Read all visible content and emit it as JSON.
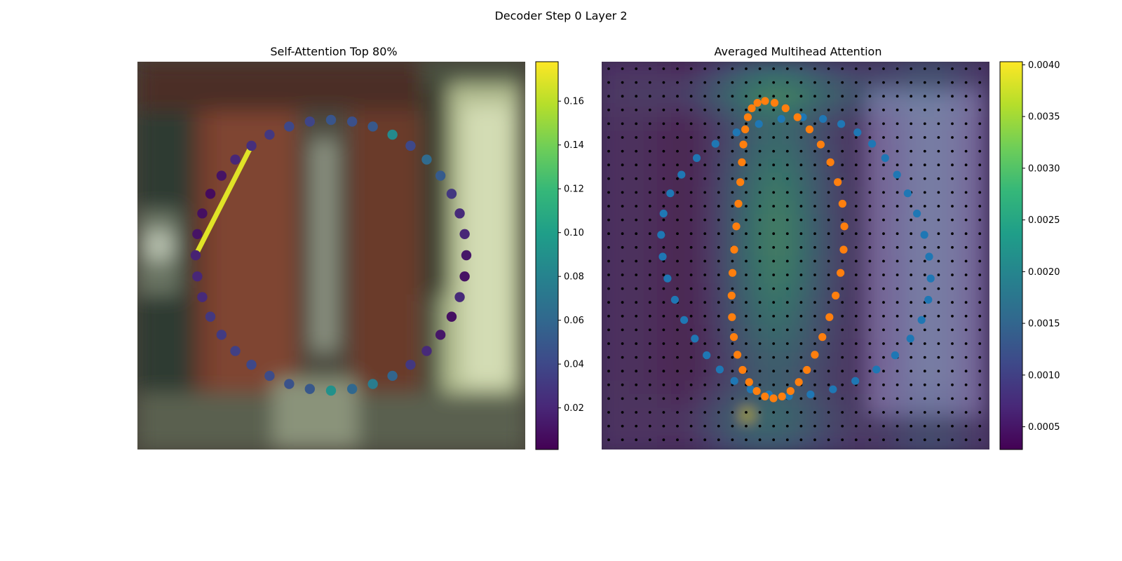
{
  "figure": {
    "title": "Decoder Step 0 Layer 2"
  },
  "colors": {
    "viridis": [
      "#440154",
      "#482878",
      "#3e4989",
      "#31688e",
      "#26828e",
      "#1f9e89",
      "#35b779",
      "#6ece58",
      "#b5de2b",
      "#fde725"
    ],
    "blue_points": "#1f77b4",
    "orange_points": "#ff7f0e",
    "grid_dots": "#000000"
  },
  "chart_data": [
    {
      "type": "scatter",
      "title": "Self-Attention Top 80%",
      "background": "blurred photo",
      "colorbar": {
        "ticks": [
          "0.02",
          "0.04",
          "0.06",
          "0.08",
          "0.10",
          "0.12",
          "0.14",
          "0.16"
        ],
        "tick_values": [
          0.02,
          0.04,
          0.06,
          0.08,
          0.1,
          0.12,
          0.14,
          0.16
        ],
        "range": [
          0.001,
          0.178
        ]
      },
      "points": {
        "count": 40,
        "shape": "circle",
        "values": [
          0.048,
          0.045,
          0.05,
          0.085,
          0.04,
          0.062,
          0.052,
          0.03,
          0.022,
          0.02,
          0.012,
          0.01,
          0.022,
          0.008,
          0.012,
          0.022,
          0.03,
          0.058,
          0.075,
          0.06,
          0.09,
          0.05,
          0.046,
          0.042,
          0.04,
          0.035,
          0.032,
          0.03,
          0.022,
          0.02,
          0.018,
          0.01,
          0.008,
          0.006,
          0.01,
          0.02,
          0.025,
          0.03,
          0.04,
          0.038
        ]
      },
      "highlight": {
        "from_point": 36,
        "to_point": 30,
        "weight": 0.17
      }
    },
    {
      "type": "heatmap",
      "title": "Averaged Multihead Attention",
      "colorbar": {
        "ticks": [
          "0.0005",
          "0.0010",
          "0.0015",
          "0.0020",
          "0.0025",
          "0.0030",
          "0.0035",
          "0.0040"
        ],
        "tick_values": [
          0.0005,
          0.001,
          0.0015,
          0.002,
          0.0025,
          0.003,
          0.0035,
          0.004
        ],
        "range": [
          0.00028,
          0.00403
        ]
      },
      "grid": {
        "rows": 28,
        "cols": 28,
        "dot_markers": true
      },
      "blue_points": {
        "count": 40,
        "shape": "circle"
      },
      "orange_points": {
        "count": 40,
        "shape": "circle"
      }
    }
  ]
}
